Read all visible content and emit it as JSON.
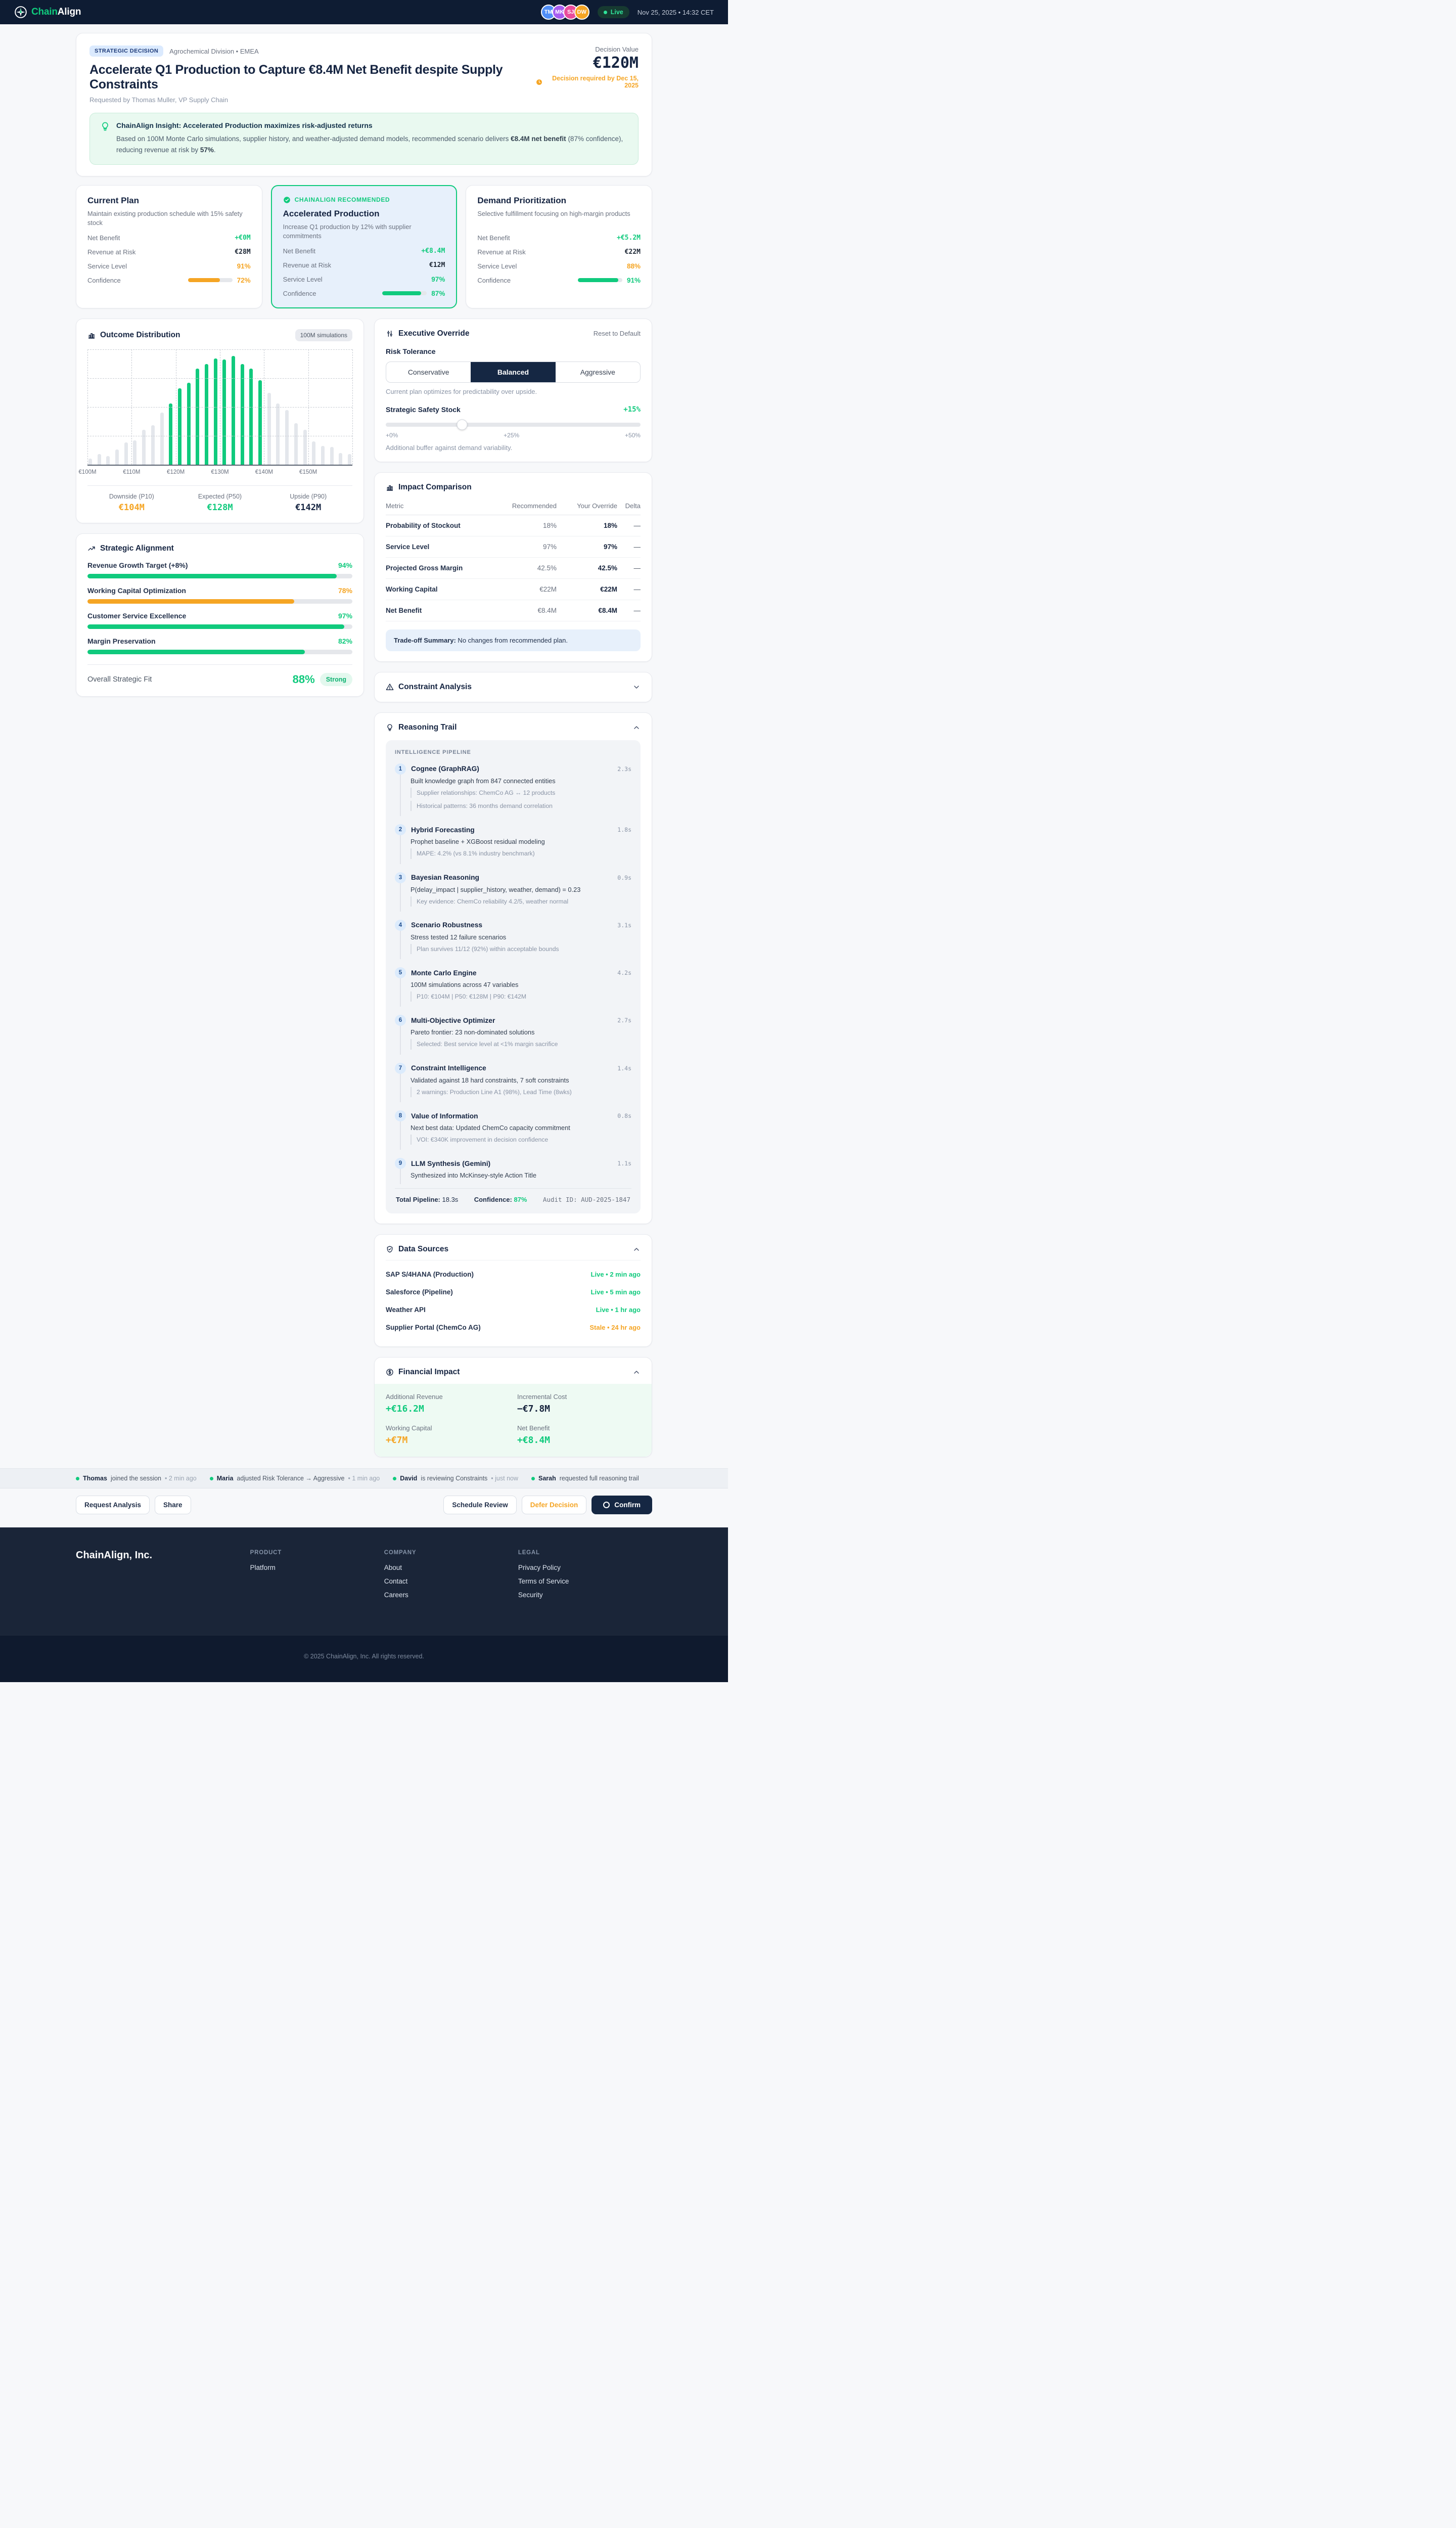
{
  "theme": {
    "green": "#10ca7d",
    "orange": "#f5a524",
    "navy": "#152441"
  },
  "topbar": {
    "brand_chain": "Chain",
    "brand_align": "Align",
    "avatars": [
      {
        "initials": "TM",
        "color": "#4f8ef7"
      },
      {
        "initials": "MK",
        "color": "#a85cf0"
      },
      {
        "initials": "SJ",
        "color": "#ea4c9b"
      },
      {
        "initials": "DW",
        "color": "#f5a524"
      }
    ],
    "live_label": "Live",
    "datetime": "Nov 25, 2025 • 14:32 CET"
  },
  "decision": {
    "badge": "STRATEGIC DECISION",
    "division": "Agrochemical Division • EMEA",
    "title": "Accelerate Q1 Production to Capture €8.4M Net Benefit despite Supply Constraints",
    "requested_by": "Requested by Thomas Muller, VP Supply Chain",
    "value_label": "Decision Value",
    "value": "€120M",
    "deadline": "Decision required by Dec 15, 2025"
  },
  "insight": {
    "title": "ChainAlign Insight: Accelerated Production maximizes risk-adjusted returns",
    "body_pre": "Based on 100M Monte Carlo simulations, supplier history, and weather-adjusted demand models, recommended scenario delivers ",
    "body_bold1": "€8.4M net benefit",
    "body_mid": " (87% confidence), reducing revenue at risk by ",
    "body_bold2": "57%",
    "body_post": "."
  },
  "scenarios": [
    {
      "recommended": false,
      "banner": "",
      "title": "Current Plan",
      "desc": "Maintain existing production schedule with 15% safety stock",
      "metrics": [
        {
          "label": "Net Benefit",
          "value": "+€0M",
          "tone": "green",
          "mono": true
        },
        {
          "label": "Revenue at Risk",
          "value": "€28M",
          "tone": "dark",
          "mono": true
        },
        {
          "label": "Service Level",
          "value": "91%",
          "tone": "orange"
        },
        {
          "label": "Confidence",
          "value": "72%",
          "tone": "orange",
          "bar": 72
        }
      ]
    },
    {
      "recommended": true,
      "banner": "CHAINALIGN RECOMMENDED",
      "title": "Accelerated Production",
      "desc": "Increase Q1 production by 12% with supplier commitments",
      "metrics": [
        {
          "label": "Net Benefit",
          "value": "+€8.4M",
          "tone": "green",
          "mono": true
        },
        {
          "label": "Revenue at Risk",
          "value": "€12M",
          "tone": "dark",
          "mono": true
        },
        {
          "label": "Service Level",
          "value": "97%",
          "tone": "green"
        },
        {
          "label": "Confidence",
          "value": "87%",
          "tone": "green",
          "bar": 87
        }
      ]
    },
    {
      "recommended": false,
      "banner": "",
      "title": "Demand Prioritization",
      "desc": "Selective fulfillment focusing on high-margin products",
      "metrics": [
        {
          "label": "Net Benefit",
          "value": "+€5.2M",
          "tone": "green",
          "mono": true
        },
        {
          "label": "Revenue at Risk",
          "value": "€22M",
          "tone": "dark",
          "mono": true
        },
        {
          "label": "Service Level",
          "value": "88%",
          "tone": "orange"
        },
        {
          "label": "Confidence",
          "value": "91%",
          "tone": "green",
          "bar": 91
        }
      ]
    }
  ],
  "outcome": {
    "title": "Outcome Distribution",
    "badge": "100M simulations",
    "chart_data": {
      "type": "bar",
      "title": "Outcome Distribution",
      "x_labels": [
        "€100M",
        "€110M",
        "€120M",
        "€130M",
        "€140M",
        "€150M"
      ],
      "x_label_positions": [
        0,
        16.67,
        33.33,
        50,
        66.67,
        83.33
      ],
      "values": [
        5,
        9,
        7.5,
        13,
        19,
        21,
        30,
        34,
        45,
        53,
        66,
        71,
        83,
        87,
        92,
        91,
        94,
        87,
        83,
        73,
        62,
        53,
        47,
        36,
        30,
        20,
        16,
        15,
        10,
        9
      ],
      "highlight_start": 9,
      "highlight_end": 19,
      "bar_color_highlight": "#10ca7d",
      "bar_color_base": "#e4e7ec",
      "grid": "dashed",
      "stats": [
        {
          "label": "Downside (P10)",
          "value": "€104M",
          "tone": "orange"
        },
        {
          "label": "Expected (P50)",
          "value": "€128M",
          "tone": "green"
        },
        {
          "label": "Upside (P90)",
          "value": "€142M",
          "tone": "dark"
        }
      ]
    }
  },
  "override": {
    "title": "Executive Override",
    "reset_label": "Reset to Default",
    "risk_label": "Risk Tolerance",
    "options": [
      {
        "label": "Conservative",
        "active": false
      },
      {
        "label": "Balanced",
        "active": true
      },
      {
        "label": "Aggressive",
        "active": false
      }
    ],
    "risk_caption": "Current plan optimizes for predictability over upside.",
    "stock_label": "Strategic Safety Stock",
    "stock_value": "+15%",
    "slider_pct": 30,
    "slider_min": "+0%",
    "slider_mid": "+25%",
    "slider_max": "+50%",
    "stock_caption": "Additional buffer against demand variability."
  },
  "impact": {
    "title": "Impact Comparison",
    "columns": [
      "Metric",
      "Recommended",
      "Your Override",
      "Delta"
    ],
    "rows": [
      [
        "Probability of Stockout",
        "18%",
        "18%",
        "—"
      ],
      [
        "Service Level",
        "97%",
        "97%",
        "—"
      ],
      [
        "Projected Gross Margin",
        "42.5%",
        "42.5%",
        "—"
      ],
      [
        "Working Capital",
        "€22M",
        "€22M",
        "—"
      ],
      [
        "Net Benefit",
        "€8.4M",
        "€8.4M",
        "—"
      ]
    ],
    "summary_label": "Trade-off Summary:",
    "summary_text": " No changes from recommended plan."
  },
  "alignment": {
    "title": "Strategic Alignment",
    "items": [
      {
        "label": "Revenue Growth Target (+8%)",
        "pct": 94,
        "tone": "green"
      },
      {
        "label": "Working Capital Optimization",
        "pct": 78,
        "tone": "orange"
      },
      {
        "label": "Customer Service Excellence",
        "pct": 97,
        "tone": "green"
      },
      {
        "label": "Margin Preservation",
        "pct": 82,
        "tone": "green"
      }
    ],
    "overall_label": "Overall Strategic Fit",
    "overall_value": "88%",
    "overall_badge": "Strong"
  },
  "constraint": {
    "title": "Constraint Analysis"
  },
  "reasoning": {
    "title": "Reasoning Trail",
    "pipeline_label": "INTELLIGENCE PIPELINE",
    "steps": [
      {
        "num": "1",
        "title": "Cognee (GraphRAG)",
        "time": "2.3s",
        "desc": "Built knowledge graph from 847 connected entities",
        "subs": [
          "Supplier relationships: ChemCo AG ↔ 12 products",
          "Historical patterns: 36 months demand correlation"
        ]
      },
      {
        "num": "2",
        "title": "Hybrid Forecasting",
        "time": "1.8s",
        "desc": "Prophet baseline + XGBoost residual modeling",
        "subs": [
          "MAPE: 4.2% (vs 8.1% industry benchmark)"
        ]
      },
      {
        "num": "3",
        "title": "Bayesian Reasoning",
        "time": "0.9s",
        "desc": "P(delay_impact | supplier_history, weather, demand) = 0.23",
        "subs": [
          "Key evidence: ChemCo reliability 4.2/5, weather normal"
        ]
      },
      {
        "num": "4",
        "title": "Scenario Robustness",
        "time": "3.1s",
        "desc": "Stress tested 12 failure scenarios",
        "subs": [
          "Plan survives 11/12 (92%) within acceptable bounds"
        ]
      },
      {
        "num": "5",
        "title": "Monte Carlo Engine",
        "time": "4.2s",
        "desc": "100M simulations across 47 variables",
        "subs": [
          "P10: €104M | P50: €128M | P90: €142M"
        ]
      },
      {
        "num": "6",
        "title": "Multi-Objective Optimizer",
        "time": "2.7s",
        "desc": "Pareto frontier: 23 non-dominated solutions",
        "subs": [
          "Selected: Best service level at <1% margin sacrifice"
        ]
      },
      {
        "num": "7",
        "title": "Constraint Intelligence",
        "time": "1.4s",
        "desc": "Validated against 18 hard constraints, 7 soft constraints",
        "subs": [
          "2 warnings: Production Line A1 (98%), Lead Time (8wks)"
        ]
      },
      {
        "num": "8",
        "title": "Value of Information",
        "time": "0.8s",
        "desc": "Next best data: Updated ChemCo capacity commitment",
        "subs": [
          "VOI: €340K improvement in decision confidence"
        ]
      },
      {
        "num": "9",
        "title": "LLM Synthesis (Gemini)",
        "time": "1.1s",
        "desc": "Synthesized into McKinsey-style Action Title",
        "subs": []
      }
    ],
    "footer": {
      "total_label": "Total Pipeline:",
      "total_value": " 18.3s",
      "conf_label": "Confidence:",
      "conf_value": " 87%",
      "audit": "Audit ID: AUD-2025-1847"
    }
  },
  "sources": {
    "title": "Data Sources",
    "items": [
      {
        "name": "SAP S/4HANA (Production)",
        "status": "Live • 2 min ago",
        "tone": "green"
      },
      {
        "name": "Salesforce (Pipeline)",
        "status": "Live • 5 min ago",
        "tone": "green"
      },
      {
        "name": "Weather API",
        "status": "Live • 1 hr ago",
        "tone": "green"
      },
      {
        "name": "Supplier Portal (ChemCo AG)",
        "status": "Stale • 24 hr ago",
        "tone": "orange"
      }
    ]
  },
  "financial": {
    "title": "Financial Impact",
    "items": [
      {
        "label": "Additional Revenue",
        "value": "+€16.2M",
        "tone": "green"
      },
      {
        "label": "Incremental Cost",
        "value": "−€7.8M",
        "tone": "dark"
      },
      {
        "label": "Working Capital",
        "value": "+€7M",
        "tone": "orange"
      },
      {
        "label": "Net Benefit",
        "value": "+€8.4M",
        "tone": "green"
      }
    ]
  },
  "activity": {
    "items": [
      {
        "name": "Thomas",
        "action": "joined the session",
        "time": "• 2 min ago"
      },
      {
        "name": "Maria",
        "action": "adjusted Risk Tolerance → Aggressive",
        "time": "• 1 min ago"
      },
      {
        "name": "David",
        "action": "is reviewing Constraints",
        "time": "• just now"
      },
      {
        "name": "Sarah",
        "action": "requested full reasoning trail",
        "time": ""
      }
    ]
  },
  "actions": {
    "left": [
      {
        "label": "Request Analysis",
        "style": "plain"
      },
      {
        "label": "Share",
        "style": "plain"
      }
    ],
    "right": [
      {
        "label": "Schedule Review",
        "style": "plain"
      },
      {
        "label": "Defer Decision",
        "style": "warn"
      },
      {
        "label": "Confirm",
        "style": "primary"
      }
    ]
  },
  "footer": {
    "brand": "ChainAlign, Inc.",
    "columns": [
      {
        "heading": "PRODUCT",
        "links": [
          "Platform"
        ]
      },
      {
        "heading": "COMPANY",
        "links": [
          "About",
          "Contact",
          "Careers"
        ]
      },
      {
        "heading": "LEGAL",
        "links": [
          "Privacy Policy",
          "Terms of Service",
          "Security"
        ]
      }
    ],
    "copyright": "© 2025 ChainAlign, Inc. All rights reserved."
  }
}
